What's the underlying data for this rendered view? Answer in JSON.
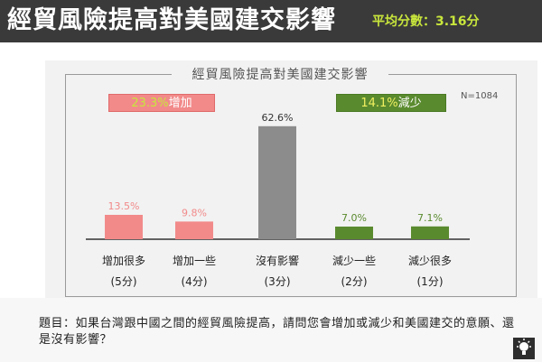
{
  "header": {
    "title": "經貿風險提高對美國建交影響",
    "average": "平均分數：3.16分"
  },
  "panel": {
    "title": "經貿風險提高對美國建交影響",
    "n_label": "N=1084"
  },
  "badges": {
    "increase": {
      "pct": "23.3%",
      "label": "增加"
    },
    "decrease": {
      "pct": "14.1%",
      "label": "減少"
    }
  },
  "question": "題目：如果台灣跟中國之間的經貿風險提高，請問您會增加或減少和美國建交的意願、還是沒有影響？",
  "colors": {
    "increase": "#f28a8a",
    "neutral": "#8c8c8c",
    "decrease": "#5a8a2e"
  },
  "chart_data": {
    "type": "bar",
    "title": "經貿風險提高對美國建交影響",
    "categories": [
      "增加很多",
      "增加一些",
      "沒有影響",
      "減少一些",
      "減少很多"
    ],
    "sublabels": [
      "(5分)",
      "(4分)",
      "(3分)",
      "(2分)",
      "(1分)"
    ],
    "values": [
      13.5,
      9.8,
      62.6,
      7.0,
      7.1
    ],
    "value_labels": [
      "13.5%",
      "9.8%",
      "62.6%",
      "7.0%",
      "7.1%"
    ],
    "groups": [
      "increase",
      "increase",
      "neutral",
      "decrease",
      "decrease"
    ],
    "ylim": [
      0,
      100
    ],
    "grid": false,
    "legend": "none"
  }
}
